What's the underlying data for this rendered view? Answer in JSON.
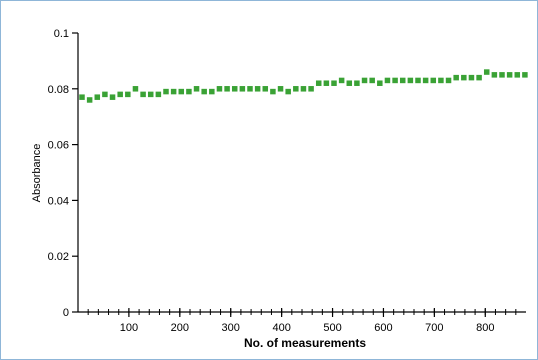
{
  "chart_data": {
    "type": "scatter",
    "title": "",
    "xlabel": "No. of measurements",
    "ylabel": "Absorbance",
    "xlim": [
      0,
      880
    ],
    "ylim": [
      0,
      0.1
    ],
    "x_ticks": [
      100,
      200,
      300,
      400,
      500,
      600,
      700,
      800
    ],
    "x_tick_labels": [
      "100",
      "200",
      "300",
      "400",
      "500",
      "600",
      "700",
      "800"
    ],
    "y_ticks": [
      0,
      0.02,
      0.04,
      0.06,
      0.08,
      0.1
    ],
    "y_tick_labels": [
      "0",
      "0.02",
      "0.04",
      "0.06",
      "0.08",
      "0.1"
    ],
    "grid": false,
    "marker_color": "#3aa235",
    "series": [
      {
        "x": [
          0,
          15,
          30,
          45,
          60,
          75,
          90,
          105,
          120,
          135,
          150,
          165,
          180,
          195,
          210,
          225,
          240,
          255,
          270,
          285,
          300,
          315,
          330,
          345,
          360,
          375,
          390,
          405,
          420,
          435,
          450,
          465,
          480,
          495,
          510,
          525,
          540,
          555,
          570,
          585,
          600,
          615,
          630,
          645,
          660,
          675,
          690,
          705,
          720,
          735,
          750,
          765,
          780,
          795,
          810,
          825,
          840,
          855,
          870
        ],
        "y": [
          0.077,
          0.076,
          0.077,
          0.078,
          0.077,
          0.078,
          0.078,
          0.08,
          0.078,
          0.078,
          0.078,
          0.079,
          0.079,
          0.079,
          0.079,
          0.08,
          0.079,
          0.079,
          0.08,
          0.08,
          0.08,
          0.08,
          0.08,
          0.08,
          0.08,
          0.079,
          0.08,
          0.079,
          0.08,
          0.08,
          0.08,
          0.082,
          0.082,
          0.082,
          0.083,
          0.082,
          0.082,
          0.083,
          0.083,
          0.082,
          0.083,
          0.083,
          0.083,
          0.083,
          0.083,
          0.083,
          0.083,
          0.083,
          0.083,
          0.084,
          0.084,
          0.084,
          0.084,
          0.086,
          0.085,
          0.085,
          0.085,
          0.085,
          0.085
        ]
      }
    ]
  }
}
